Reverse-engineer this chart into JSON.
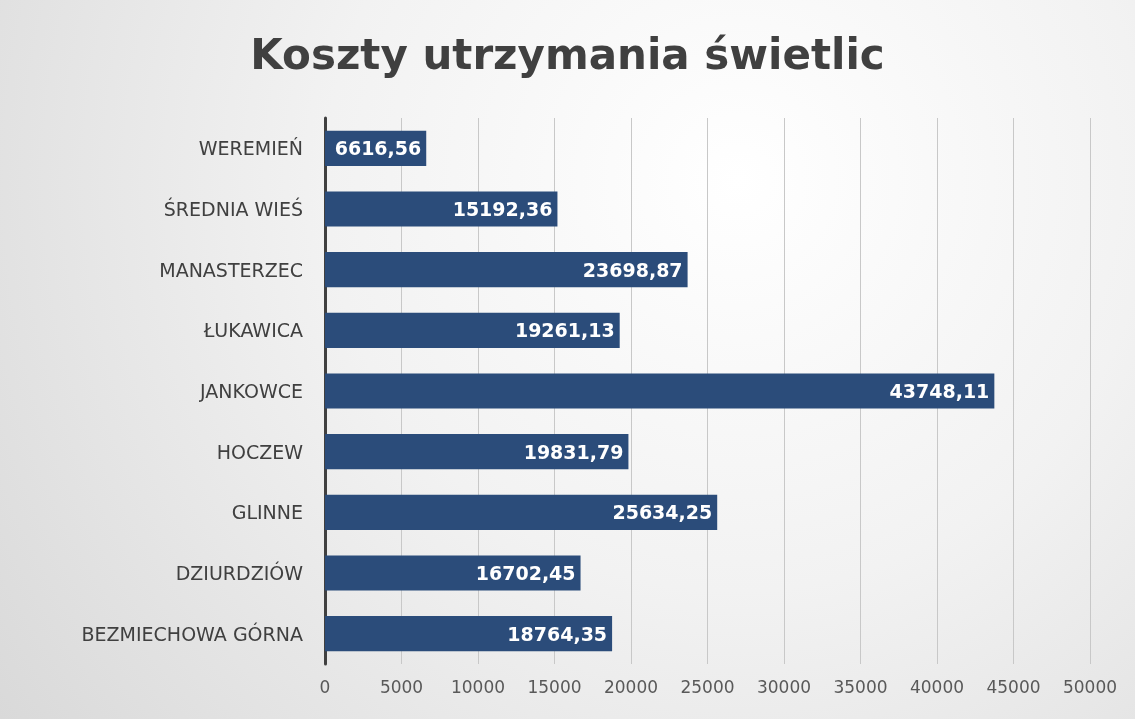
{
  "chart_data": {
    "type": "bar",
    "orientation": "horizontal",
    "title": "Koszty utrzymania świetlic",
    "categories": [
      "WEREMIEŃ",
      "ŚREDNIA WIEŚ",
      "MANASTERZEC",
      "ŁUKAWICA",
      "JANKOWCE",
      "HOCZEW",
      "GLINNE",
      "DZIURDZIÓW",
      "BEZMIECHOWA GÓRNA"
    ],
    "values": [
      6616.56,
      15192.36,
      23698.87,
      19261.13,
      43748.11,
      19831.79,
      25634.25,
      16702.45,
      18764.35
    ],
    "value_labels": [
      "6616,56",
      "15192,36",
      "23698,87",
      "19261,13",
      "43748,11",
      "19831,79",
      "25634,25",
      "16702,45",
      "18764,35"
    ],
    "color": "#2b4c7a",
    "xlim": [
      0,
      50000
    ],
    "xticks": [
      0,
      5000,
      10000,
      15000,
      20000,
      25000,
      30000,
      35000,
      40000,
      45000,
      50000
    ],
    "grid": "x"
  }
}
